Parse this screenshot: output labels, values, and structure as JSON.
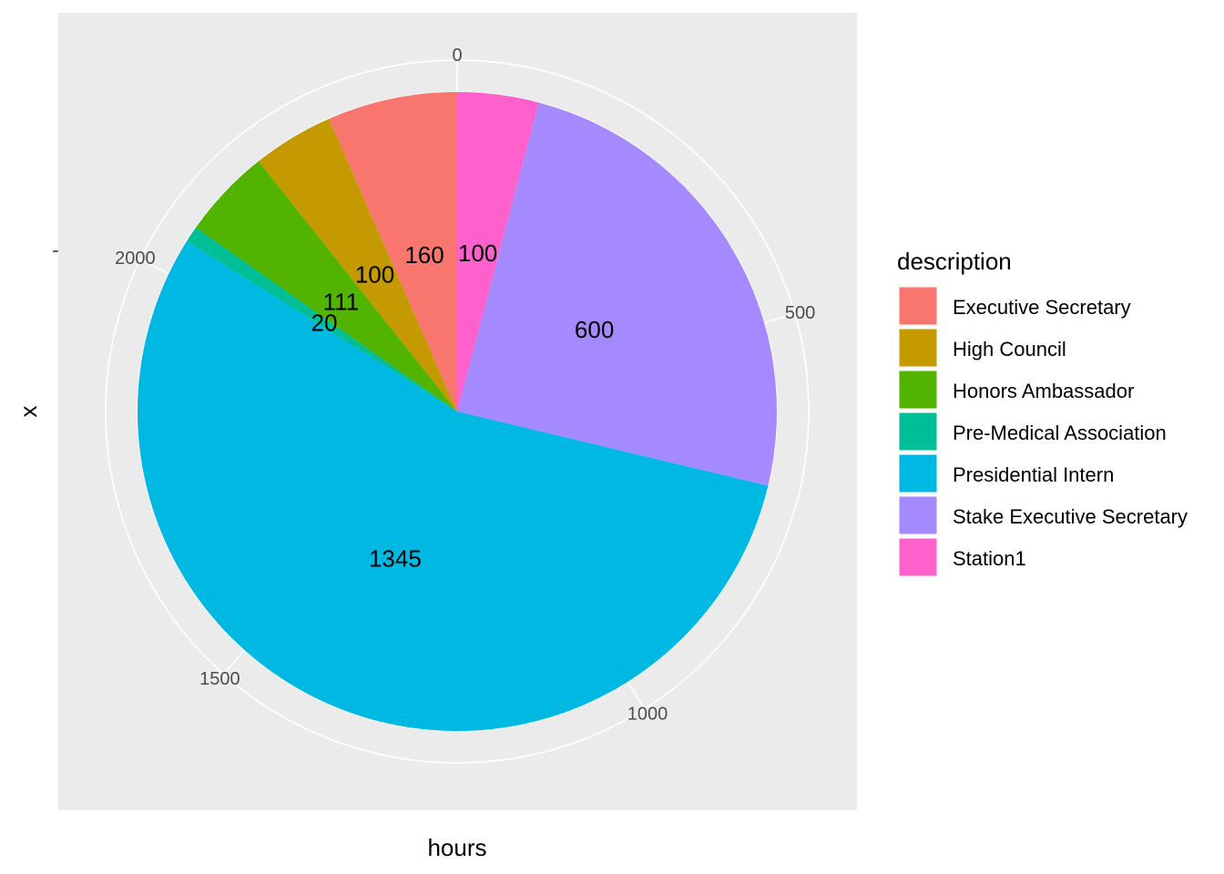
{
  "chart_data": {
    "type": "pie",
    "title": "",
    "xlabel": "hours",
    "ylabel": "x",
    "legend_title": "description",
    "legend_placement": "right",
    "grid": true,
    "theta_range": [
      0,
      2436
    ],
    "theta_ticks": [
      0,
      500,
      1000,
      1500,
      2000
    ],
    "slices": [
      {
        "label": "Station1",
        "value": 100,
        "color": "#FF61CC"
      },
      {
        "label": "Stake Executive Secretary",
        "value": 600,
        "color": "#A58AFF"
      },
      {
        "label": "Presidential Intern",
        "value": 1345,
        "color": "#00B9E3"
      },
      {
        "label": "Pre-Medical Association",
        "value": 20,
        "color": "#00BF96"
      },
      {
        "label": "Honors Ambassador",
        "value": 111,
        "color": "#53B400"
      },
      {
        "label": "High Council",
        "value": 100,
        "color": "#C49A00"
      },
      {
        "label": "Executive Secretary",
        "value": 160,
        "color": "#F8766D"
      }
    ],
    "legend": [
      {
        "label": "Executive Secretary",
        "color": "#F8766D"
      },
      {
        "label": "High Council",
        "color": "#C49A00"
      },
      {
        "label": "Honors Ambassador",
        "color": "#53B400"
      },
      {
        "label": "Pre-Medical Association",
        "color": "#00BF96"
      },
      {
        "label": "Presidential Intern",
        "color": "#00B9E3"
      },
      {
        "label": "Stake Executive Secretary",
        "color": "#A58AFF"
      },
      {
        "label": "Station1",
        "color": "#FF61CC"
      }
    ]
  }
}
